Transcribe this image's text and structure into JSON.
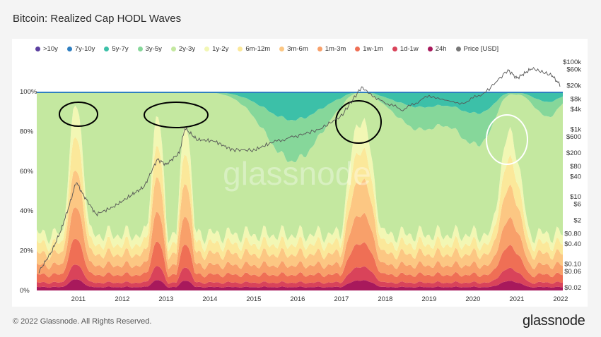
{
  "header": {
    "title": "Bitcoin: Realized Cap HODL Waves"
  },
  "footer": {
    "copyright": "© 2022 Glassnode. All Rights Reserved.",
    "brand": "glassnode"
  },
  "watermark": "glassnode",
  "chart_data": {
    "type": "area",
    "title": "Bitcoin: Realized Cap HODL Waves",
    "x_ticks": [
      "2011",
      "2012",
      "2013",
      "2014",
      "2015",
      "2016",
      "2017",
      "2018",
      "2019",
      "2020",
      "2021",
      "2022"
    ],
    "y_left_ticks": [
      "100%",
      "80%",
      "60%",
      "40%",
      "20%",
      "0%"
    ],
    "y_right_ticks": [
      "$100k",
      "$60k",
      "$20k",
      "$8k",
      "$4k",
      "$1k",
      "$600",
      "$200",
      "$80",
      "$40",
      "$10",
      "$6",
      "$2",
      "$0.80",
      "$0.40",
      "$0.10",
      "$0.06",
      "$0.02"
    ],
    "y_left_range": [
      0,
      100
    ],
    "y_right_range_usd": [
      0.02,
      100000
    ],
    "y_right_scale": "log",
    "legend": [
      {
        "name": ">10y",
        "color": "#5b3fa0"
      },
      {
        "name": "7y-10y",
        "color": "#2f7fc1"
      },
      {
        "name": "5y-7y",
        "color": "#3cc0a8"
      },
      {
        "name": "3y-5y",
        "color": "#86d79a"
      },
      {
        "name": "2y-3y",
        "color": "#c4e8a0"
      },
      {
        "name": "1y-2y",
        "color": "#f2f7b4"
      },
      {
        "name": "6m-12m",
        "color": "#fbe89a"
      },
      {
        "name": "3m-6m",
        "color": "#fcc783"
      },
      {
        "name": "1m-3m",
        "color": "#f8a06a"
      },
      {
        "name": "1w-1m",
        "color": "#ef6f55"
      },
      {
        "name": "1d-1w",
        "color": "#d9435a"
      },
      {
        "name": "24h",
        "color": "#a8195c"
      },
      {
        "name": "Price [USD]",
        "color": "#777777"
      }
    ],
    "price_series": [
      {
        "x": 2010.6,
        "y": 0.06
      },
      {
        "x": 2010.9,
        "y": 0.25
      },
      {
        "x": 2011.1,
        "y": 1
      },
      {
        "x": 2011.3,
        "y": 6
      },
      {
        "x": 2011.45,
        "y": 28
      },
      {
        "x": 2011.6,
        "y": 12
      },
      {
        "x": 2011.9,
        "y": 3
      },
      {
        "x": 2012.3,
        "y": 5
      },
      {
        "x": 2012.7,
        "y": 11
      },
      {
        "x": 2013.0,
        "y": 20
      },
      {
        "x": 2013.3,
        "y": 130
      },
      {
        "x": 2013.5,
        "y": 90
      },
      {
        "x": 2013.8,
        "y": 200
      },
      {
        "x": 2013.93,
        "y": 1100
      },
      {
        "x": 2014.2,
        "y": 500
      },
      {
        "x": 2014.6,
        "y": 450
      },
      {
        "x": 2015.0,
        "y": 250
      },
      {
        "x": 2015.5,
        "y": 240
      },
      {
        "x": 2015.9,
        "y": 400
      },
      {
        "x": 2016.5,
        "y": 650
      },
      {
        "x": 2017.0,
        "y": 1000
      },
      {
        "x": 2017.5,
        "y": 2500
      },
      {
        "x": 2017.96,
        "y": 18000
      },
      {
        "x": 2018.3,
        "y": 8000
      },
      {
        "x": 2018.9,
        "y": 3800
      },
      {
        "x": 2019.5,
        "y": 10000
      },
      {
        "x": 2020.2,
        "y": 5500
      },
      {
        "x": 2020.8,
        "y": 13000
      },
      {
        "x": 2021.3,
        "y": 58000
      },
      {
        "x": 2021.5,
        "y": 33000
      },
      {
        "x": 2021.85,
        "y": 65000
      },
      {
        "x": 2022.3,
        "y": 40000
      },
      {
        "x": 2022.5,
        "y": 20000
      }
    ],
    "annotations": [
      {
        "shape": "ellipse",
        "color": "black",
        "around": "2011 peak"
      },
      {
        "shape": "ellipse",
        "color": "black",
        "around": "2013 peaks"
      },
      {
        "shape": "ellipse",
        "color": "black",
        "around": "2017-2018 peak"
      },
      {
        "shape": "ellipse",
        "color": "white",
        "around": "2021 peak"
      }
    ]
  }
}
